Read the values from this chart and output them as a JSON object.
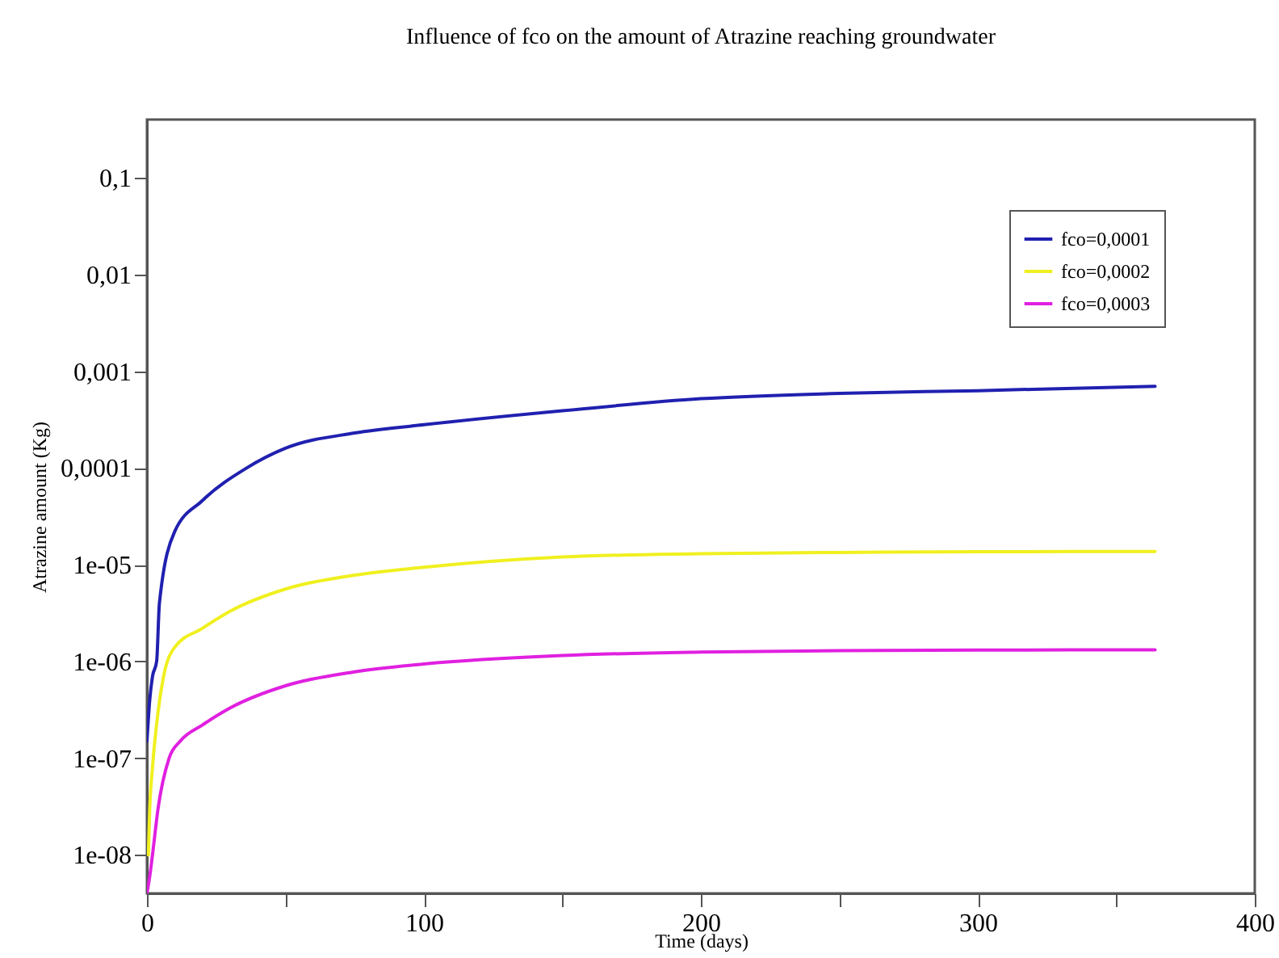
{
  "chart_data": {
    "type": "line",
    "title": "Influence of fco on the amount of Atrazine reaching groundwater",
    "xlabel": "Time (days)",
    "ylabel": "Atrazine amount (Kg)",
    "log": "y",
    "grid": false,
    "legend": "top right",
    "line_style": "solid",
    "marker": "none",
    "xlim": [
      0,
      400
    ],
    "xticks": [
      0,
      {
        "value": 50,
        "label": null
      },
      100,
      {
        "value": 150,
        "label": null
      },
      200,
      {
        "value": 250,
        "label": null
      },
      300,
      {
        "value": 350,
        "label": null
      },
      400
    ],
    "ylim": [
      4e-09,
      0.4
    ],
    "yticks": [
      {
        "value": 1e-08,
        "label": "1e-08"
      },
      {
        "value": 1e-07,
        "label": "1e-07"
      },
      {
        "value": 1e-06,
        "label": "1e-06"
      },
      {
        "value": 1e-05,
        "label": "1e-05"
      },
      {
        "value": 0.0001,
        "label": "0,0001"
      },
      {
        "value": 0.001,
        "label": "0,001"
      },
      {
        "value": 0.01,
        "label": "0,01"
      },
      {
        "value": 0.1,
        "label": "0,1"
      }
    ],
    "series": [
      {
        "name": "fco=0,0001",
        "color": "#2020b0",
        "x": [
          0,
          1,
          2,
          3.5,
          4.5,
          10,
          20,
          36,
          50,
          75,
          100,
          150,
          200,
          250,
          300,
          364
        ],
        "values": [
          1.5e-07,
          4e-07,
          7e-07,
          1e-06,
          4e-06,
          2.2e-05,
          4.6e-05,
          0.0001,
          0.00016,
          0.00023,
          0.00028,
          0.00039,
          0.00052,
          0.00059,
          0.00063,
          0.0007
        ]
      },
      {
        "name": "fco=0,0002",
        "color": "#f0f020",
        "x": [
          0.5,
          1,
          2,
          4,
          6,
          10,
          20,
          30,
          50,
          75,
          100,
          150,
          200,
          250,
          300,
          364
        ],
        "values": [
          1e-08,
          3e-08,
          8e-08,
          3e-07,
          7e-07,
          1.4e-06,
          2.2e-06,
          3.3e-06,
          5.6e-06,
          7.8e-06,
          9.4e-06,
          1.2e-05,
          1.3e-05,
          1.34e-05,
          1.36e-05,
          1.37e-05
        ]
      },
      {
        "name": "fco=0,0003",
        "color": "#e020e0",
        "x": [
          0,
          1,
          2,
          4,
          8,
          12,
          20,
          30,
          50,
          75,
          100,
          150,
          200,
          250,
          300,
          364
        ],
        "values": [
          4e-09,
          6e-09,
          1e-08,
          3e-08,
          1e-07,
          1.5e-07,
          2.2e-07,
          3.3e-07,
          5.6e-07,
          7.8e-07,
          9.4e-07,
          1.15e-06,
          1.25e-06,
          1.29e-06,
          1.31e-06,
          1.32e-06
        ]
      }
    ]
  }
}
